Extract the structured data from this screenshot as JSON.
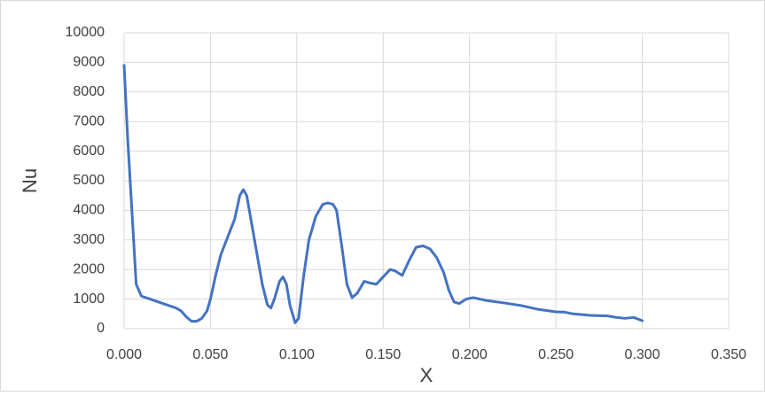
{
  "chart_data": {
    "type": "line",
    "x_label": "X",
    "y_label": "Nu",
    "x": [
      0.0,
      0.002,
      0.005,
      0.007,
      0.01,
      0.015,
      0.02,
      0.025,
      0.03,
      0.033,
      0.036,
      0.039,
      0.042,
      0.045,
      0.048,
      0.05,
      0.053,
      0.056,
      0.06,
      0.064,
      0.067,
      0.069,
      0.071,
      0.074,
      0.077,
      0.08,
      0.083,
      0.085,
      0.087,
      0.09,
      0.092,
      0.094,
      0.096,
      0.099,
      0.101,
      0.104,
      0.107,
      0.111,
      0.115,
      0.118,
      0.121,
      0.123,
      0.126,
      0.129,
      0.132,
      0.135,
      0.139,
      0.142,
      0.146,
      0.15,
      0.154,
      0.157,
      0.161,
      0.165,
      0.169,
      0.173,
      0.177,
      0.181,
      0.185,
      0.188,
      0.191,
      0.194,
      0.198,
      0.202,
      0.21,
      0.22,
      0.23,
      0.24,
      0.25,
      0.255,
      0.26,
      0.27,
      0.28,
      0.285,
      0.29,
      0.295,
      0.3
    ],
    "series": [
      {
        "color": "#4472c4",
        "values": [
          8900,
          6500,
          3500,
          1500,
          1100,
          1000,
          900,
          800,
          700,
          600,
          400,
          250,
          250,
          350,
          600,
          1000,
          1800,
          2500,
          3100,
          3700,
          4500,
          4700,
          4500,
          3500,
          2500,
          1500,
          800,
          700,
          1000,
          1600,
          1750,
          1500,
          800,
          200,
          350,
          1800,
          3000,
          3800,
          4200,
          4250,
          4200,
          4000,
          2800,
          1500,
          1050,
          1200,
          1600,
          1550,
          1500,
          1750,
          2000,
          1950,
          1800,
          2300,
          2750,
          2800,
          2700,
          2400,
          1900,
          1300,
          900,
          850,
          1000,
          1050,
          950,
          870,
          780,
          650,
          570,
          560,
          500,
          450,
          430,
          380,
          350,
          380,
          270
        ]
      }
    ],
    "xlim": [
      0,
      0.35
    ],
    "xticks": [
      {
        "value": 0,
        "label": "0.000"
      },
      {
        "value": 0.05,
        "label": "0.050"
      },
      {
        "value": 0.1,
        "label": "0.100"
      },
      {
        "value": 0.15,
        "label": "0.150"
      },
      {
        "value": 0.2,
        "label": "0.200"
      },
      {
        "value": 0.25,
        "label": "0.250"
      },
      {
        "value": 0.3,
        "label": "0.300"
      },
      {
        "value": 0.35,
        "label": "0.350"
      }
    ],
    "ylim": [
      0,
      10000
    ],
    "yticks": [
      0,
      1000,
      2000,
      3000,
      4000,
      5000,
      6000,
      7000,
      8000,
      9000,
      10000
    ],
    "grid": true
  }
}
